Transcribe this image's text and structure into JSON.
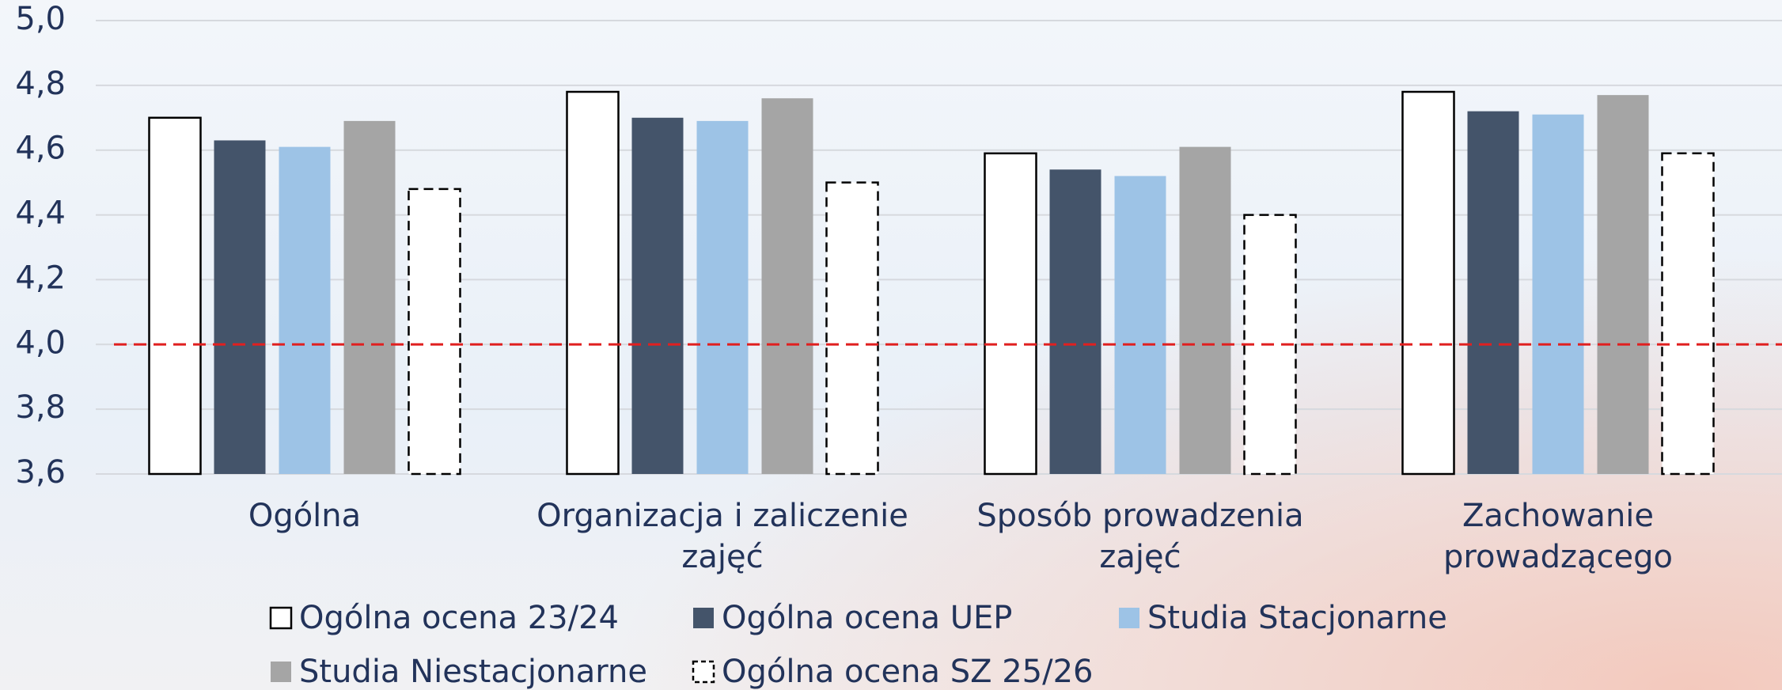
{
  "chart_data": {
    "type": "bar",
    "categories": [
      "Ogólna",
      "Organizacja i zaliczenie zajęć",
      "Sposób prowadzenia zajęć",
      "Zachowanie prowadzącego"
    ],
    "series": [
      {
        "name": "Ogólna ocena 23/24",
        "color": "#ffffff",
        "style": "outline",
        "values": [
          4.7,
          4.78,
          4.59,
          4.78
        ]
      },
      {
        "name": "Ogólna ocena UEP",
        "color": "#44546a",
        "style": "solid",
        "values": [
          4.63,
          4.7,
          4.54,
          4.72
        ]
      },
      {
        "name": "Studia Stacjonarne",
        "color": "#9dc3e6",
        "style": "solid",
        "values": [
          4.61,
          4.69,
          4.52,
          4.71
        ]
      },
      {
        "name": "Studia Niestacjonarne",
        "color": "#a5a5a5",
        "style": "solid",
        "values": [
          4.69,
          4.76,
          4.61,
          4.77
        ]
      },
      {
        "name": "Ogólna ocena SZ 25/26",
        "color": "#ffffff",
        "style": "dashed-outline",
        "values": [
          4.48,
          4.5,
          4.4,
          4.59
        ]
      }
    ],
    "ylim": [
      3.6,
      5.0
    ],
    "yticks": [
      {
        "value": 3.6,
        "label": "3,6"
      },
      {
        "value": 3.8,
        "label": "3,8"
      },
      {
        "value": 4.0,
        "label": "4,0"
      },
      {
        "value": 4.2,
        "label": "4,2"
      },
      {
        "value": 4.4,
        "label": "4,4"
      },
      {
        "value": 4.6,
        "label": "4,6"
      },
      {
        "value": 4.8,
        "label": "4,8"
      },
      {
        "value": 5.0,
        "label": "5,0"
      }
    ],
    "grid": true,
    "reference_line": {
      "value": 4.0,
      "color": "#e02020"
    },
    "legend": "bottom"
  }
}
